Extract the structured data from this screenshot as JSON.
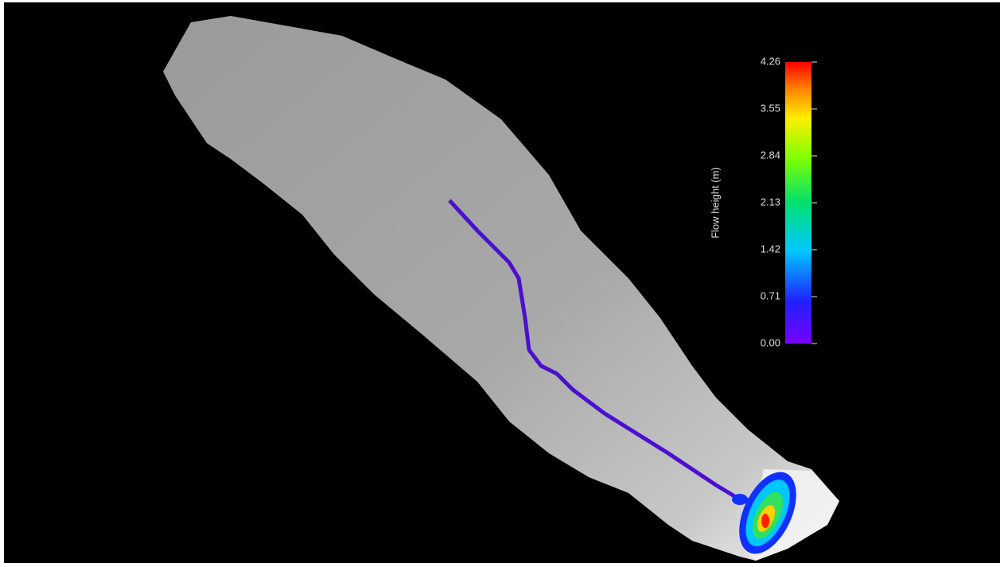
{
  "colorbar": {
    "title": "Flow height (m)",
    "lim": [
      0,
      4.26
    ],
    "ticks": [
      {
        "value": 0,
        "label": "0.00"
      },
      0.71,
      1.42,
      2.13,
      2.84,
      3.55,
      4.26
    ]
  }
}
